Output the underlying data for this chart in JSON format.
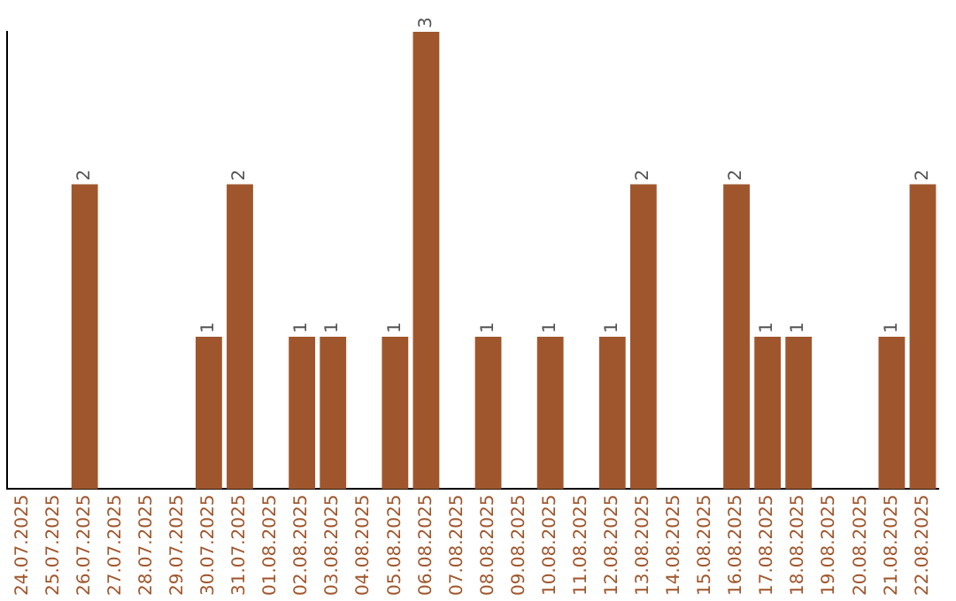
{
  "chart_data": {
    "type": "bar",
    "categories": [
      "24.07.2025",
      "25.07.2025",
      "26.07.2025",
      "27.07.2025",
      "28.07.2025",
      "29.07.2025",
      "30.07.2025",
      "31.07.2025",
      "01.08.2025",
      "02.08.2025",
      "03.08.2025",
      "04.08.2025",
      "05.08.2025",
      "06.08.2025",
      "07.08.2025",
      "08.08.2025",
      "09.08.2025",
      "10.08.2025",
      "11.08.2025",
      "12.08.2025",
      "13.08.2025",
      "14.08.2025",
      "15.08.2025",
      "16.08.2025",
      "17.08.2025",
      "18.08.2025",
      "19.08.2025",
      "20.08.2025",
      "21.08.2025",
      "22.08.2025"
    ],
    "values": [
      0,
      0,
      2,
      0,
      0,
      0,
      1,
      2,
      0,
      1,
      1,
      0,
      1,
      3,
      0,
      1,
      0,
      1,
      0,
      1,
      2,
      0,
      0,
      2,
      1,
      1,
      0,
      0,
      1,
      2
    ],
    "value_labels": [
      null,
      null,
      "2",
      null,
      null,
      null,
      "1",
      "2",
      null,
      "1",
      "1",
      null,
      "1",
      "3",
      null,
      "1",
      null,
      "1",
      null,
      "1",
      "2",
      null,
      null,
      "2",
      "1",
      "1",
      null,
      null,
      "1",
      "2"
    ],
    "color": "#a0562c",
    "tick_labels": "x",
    "grid": false,
    "legend": false
  }
}
